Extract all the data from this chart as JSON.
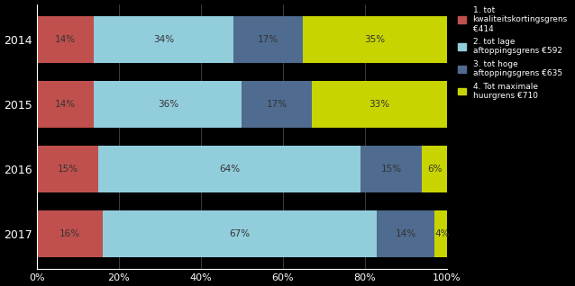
{
  "years": [
    "2014",
    "2015",
    "2016",
    "2017"
  ],
  "segments": [
    {
      "label": "1. tot\nkwaliteitskortingsgrens\n€414",
      "color": "#c0504d",
      "values": [
        14,
        14,
        15,
        16
      ]
    },
    {
      "label": "2. tot lage\naftoppingsgrens €592",
      "color": "#92cddc",
      "values": [
        34,
        36,
        64,
        67
      ]
    },
    {
      "label": "3. tot hoge\naftoppingsgrens €635",
      "color": "#4f6b8f",
      "values": [
        17,
        17,
        15,
        14
      ]
    },
    {
      "label": "4. Tot maximale\nhuurgrens €710",
      "color": "#c8d400",
      "values": [
        35,
        33,
        6,
        4
      ]
    }
  ],
  "bg_color": "#000000",
  "bar_area_color": "#000000",
  "text_color": "white",
  "legend_text_color": "white",
  "xlim": [
    0,
    100
  ],
  "figsize": [
    6.38,
    3.18
  ],
  "dpi": 100,
  "bar_height": 0.72,
  "bar_text_color": "#333333",
  "xtick_labels": [
    "0%",
    "20%",
    "40%",
    "60%",
    "80%",
    "100%"
  ],
  "xtick_values": [
    0,
    20,
    40,
    60,
    80,
    100
  ]
}
